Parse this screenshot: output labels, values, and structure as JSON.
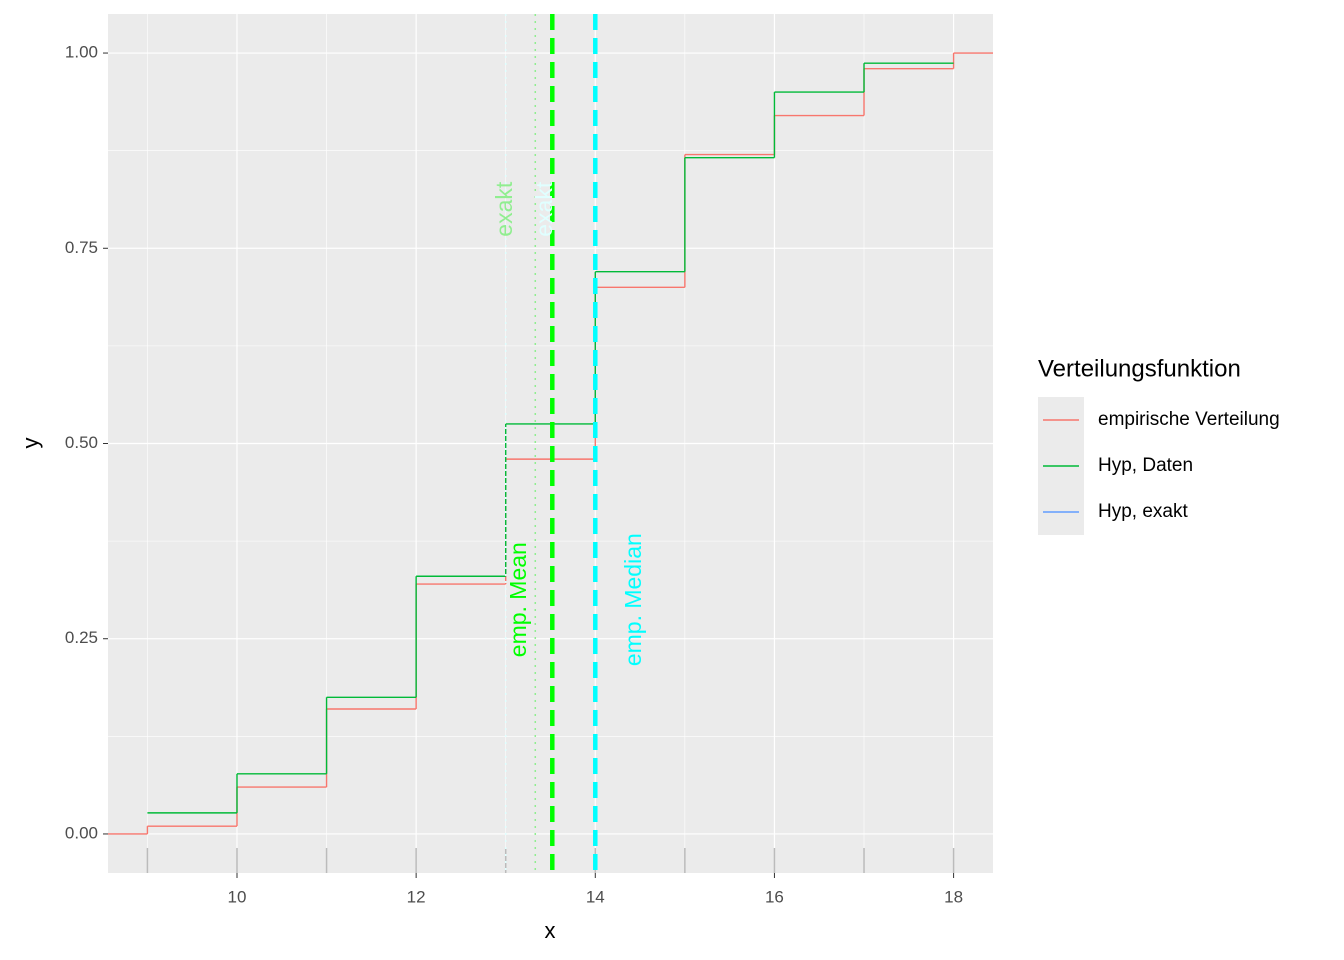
{
  "chart_data": {
    "type": "step",
    "x_label": "x",
    "y_label": "y",
    "legend_title": "Verteilungsfunktion",
    "legend_position": "right",
    "grid": true,
    "xlim": [
      8.56,
      18.44
    ],
    "ylim": [
      -0.05,
      1.05
    ],
    "xticks": [
      10,
      12,
      14,
      16,
      18
    ],
    "yticks": [
      {
        "value": 0,
        "label": "0.00"
      },
      {
        "value": 0.25,
        "label": "0.25"
      },
      {
        "value": 0.5,
        "label": "0.50"
      },
      {
        "value": 0.75,
        "label": "0.75"
      },
      {
        "value": 1,
        "label": "1.00"
      }
    ],
    "series": [
      {
        "name": "empirische Verteilung",
        "color": "#F8766D",
        "x": [
          8,
          9,
          10,
          11,
          12,
          13,
          14,
          15,
          16,
          17,
          18
        ],
        "values": [
          0,
          0.01,
          0.06,
          0.16,
          0.32,
          0.48,
          0.7,
          0.87,
          0.92,
          0.98,
          1.0
        ]
      },
      {
        "name": "Hyp, Daten",
        "color": "#00BA38",
        "x": [
          9,
          10,
          11,
          12,
          13,
          14,
          15,
          16,
          17,
          18
        ],
        "values": [
          0.027,
          0.077,
          0.175,
          0.33,
          0.525,
          0.72,
          0.866,
          0.95,
          0.987,
          null
        ]
      },
      {
        "name": "Hyp, exakt",
        "color": "#619CFF",
        "x": [
          9
        ],
        "values": [
          null
        ]
      }
    ],
    "vlines": [
      {
        "x": 13.0,
        "color": "#E0FFFF",
        "style": "dotted"
      },
      {
        "x": 13.33,
        "color": "#90EE90",
        "style": "dotted"
      },
      {
        "x": 13.52,
        "color": "#00FF00",
        "style": "dashed"
      },
      {
        "x": 14.0,
        "color": "#00FFFF",
        "style": "dashed"
      }
    ],
    "annotations": [
      {
        "text": "exakt",
        "x": 13.0,
        "y": 0.8,
        "color": "#90EE90"
      },
      {
        "text": "exakt",
        "x": 13.45,
        "y": 0.8,
        "color": "#E0FFFF"
      },
      {
        "text": "emp. Mean",
        "x": 13.16,
        "y": 0.3,
        "color": "#00FF00"
      },
      {
        "text": "emp. Median",
        "x": 14.44,
        "y": 0.3,
        "color": "#00FFFF"
      }
    ],
    "rug": [
      9,
      10,
      11,
      12,
      13,
      14,
      15,
      16,
      17,
      18
    ]
  }
}
